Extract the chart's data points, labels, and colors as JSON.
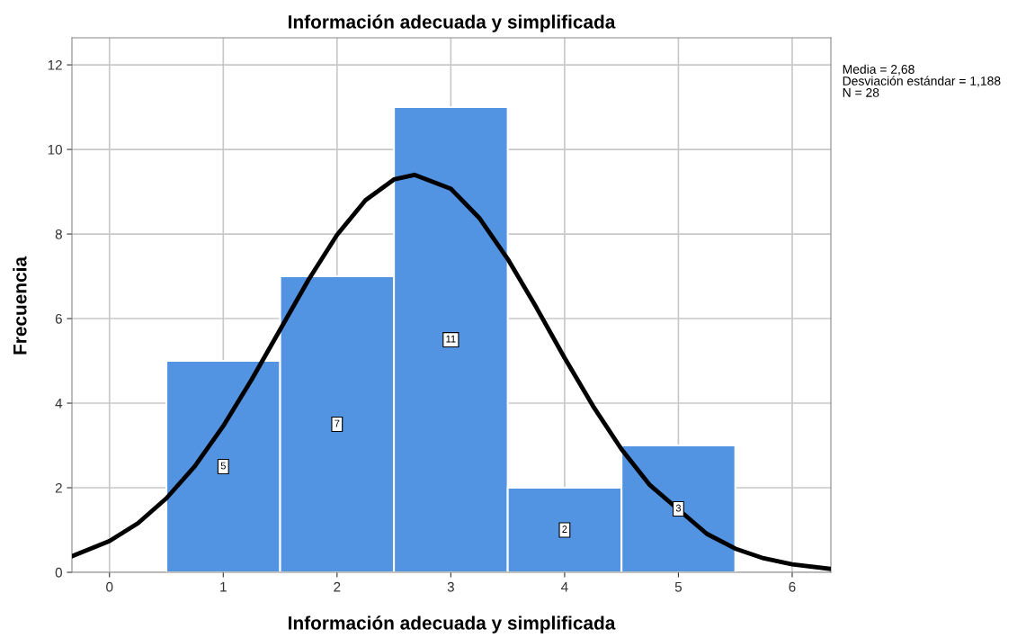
{
  "chart_data": {
    "type": "histogram",
    "title": "Información adecuada y simplificada",
    "xlabel": "Información adecuada y simplificada",
    "ylabel": "Frecuencia",
    "bins": [
      0.5,
      1.5,
      2.5,
      3.5,
      4.5,
      5.5
    ],
    "series": [
      {
        "color": "#5294e2",
        "values": [
          5,
          7,
          11,
          2,
          3
        ],
        "value_labels": [
          "5",
          "7",
          "11",
          "2",
          "3"
        ]
      },
      {
        "type": "line",
        "color": "#000000",
        "x": [
          -0.33,
          0,
          0.25,
          0.5,
          0.75,
          1,
          1.25,
          1.5,
          1.75,
          2,
          2.25,
          2.5,
          2.68,
          3,
          3.25,
          3.5,
          3.75,
          4,
          4.25,
          4.5,
          4.75,
          5.25,
          5.5,
          5.75,
          6,
          6.34
        ],
        "values": [
          0.38,
          0.74,
          1.16,
          1.75,
          2.51,
          3.46,
          4.56,
          5.74,
          6.92,
          7.98,
          8.8,
          9.29,
          9.4,
          9.07,
          8.38,
          7.41,
          6.27,
          5.07,
          3.93,
          2.91,
          2.06,
          0.91,
          0.56,
          0.33,
          0.19,
          0.08
        ]
      }
    ],
    "xlim": [
      -0.33,
      6.34
    ],
    "xticks": [
      0,
      1,
      2,
      3,
      4,
      5,
      6
    ],
    "ylim": [
      0,
      12.64
    ],
    "yticks": [
      0,
      2,
      4,
      6,
      8,
      10,
      12
    ],
    "grid": true,
    "annotations": [
      "Media = 2,68",
      "Desviación estándar = 1,188",
      "N = 28"
    ]
  }
}
